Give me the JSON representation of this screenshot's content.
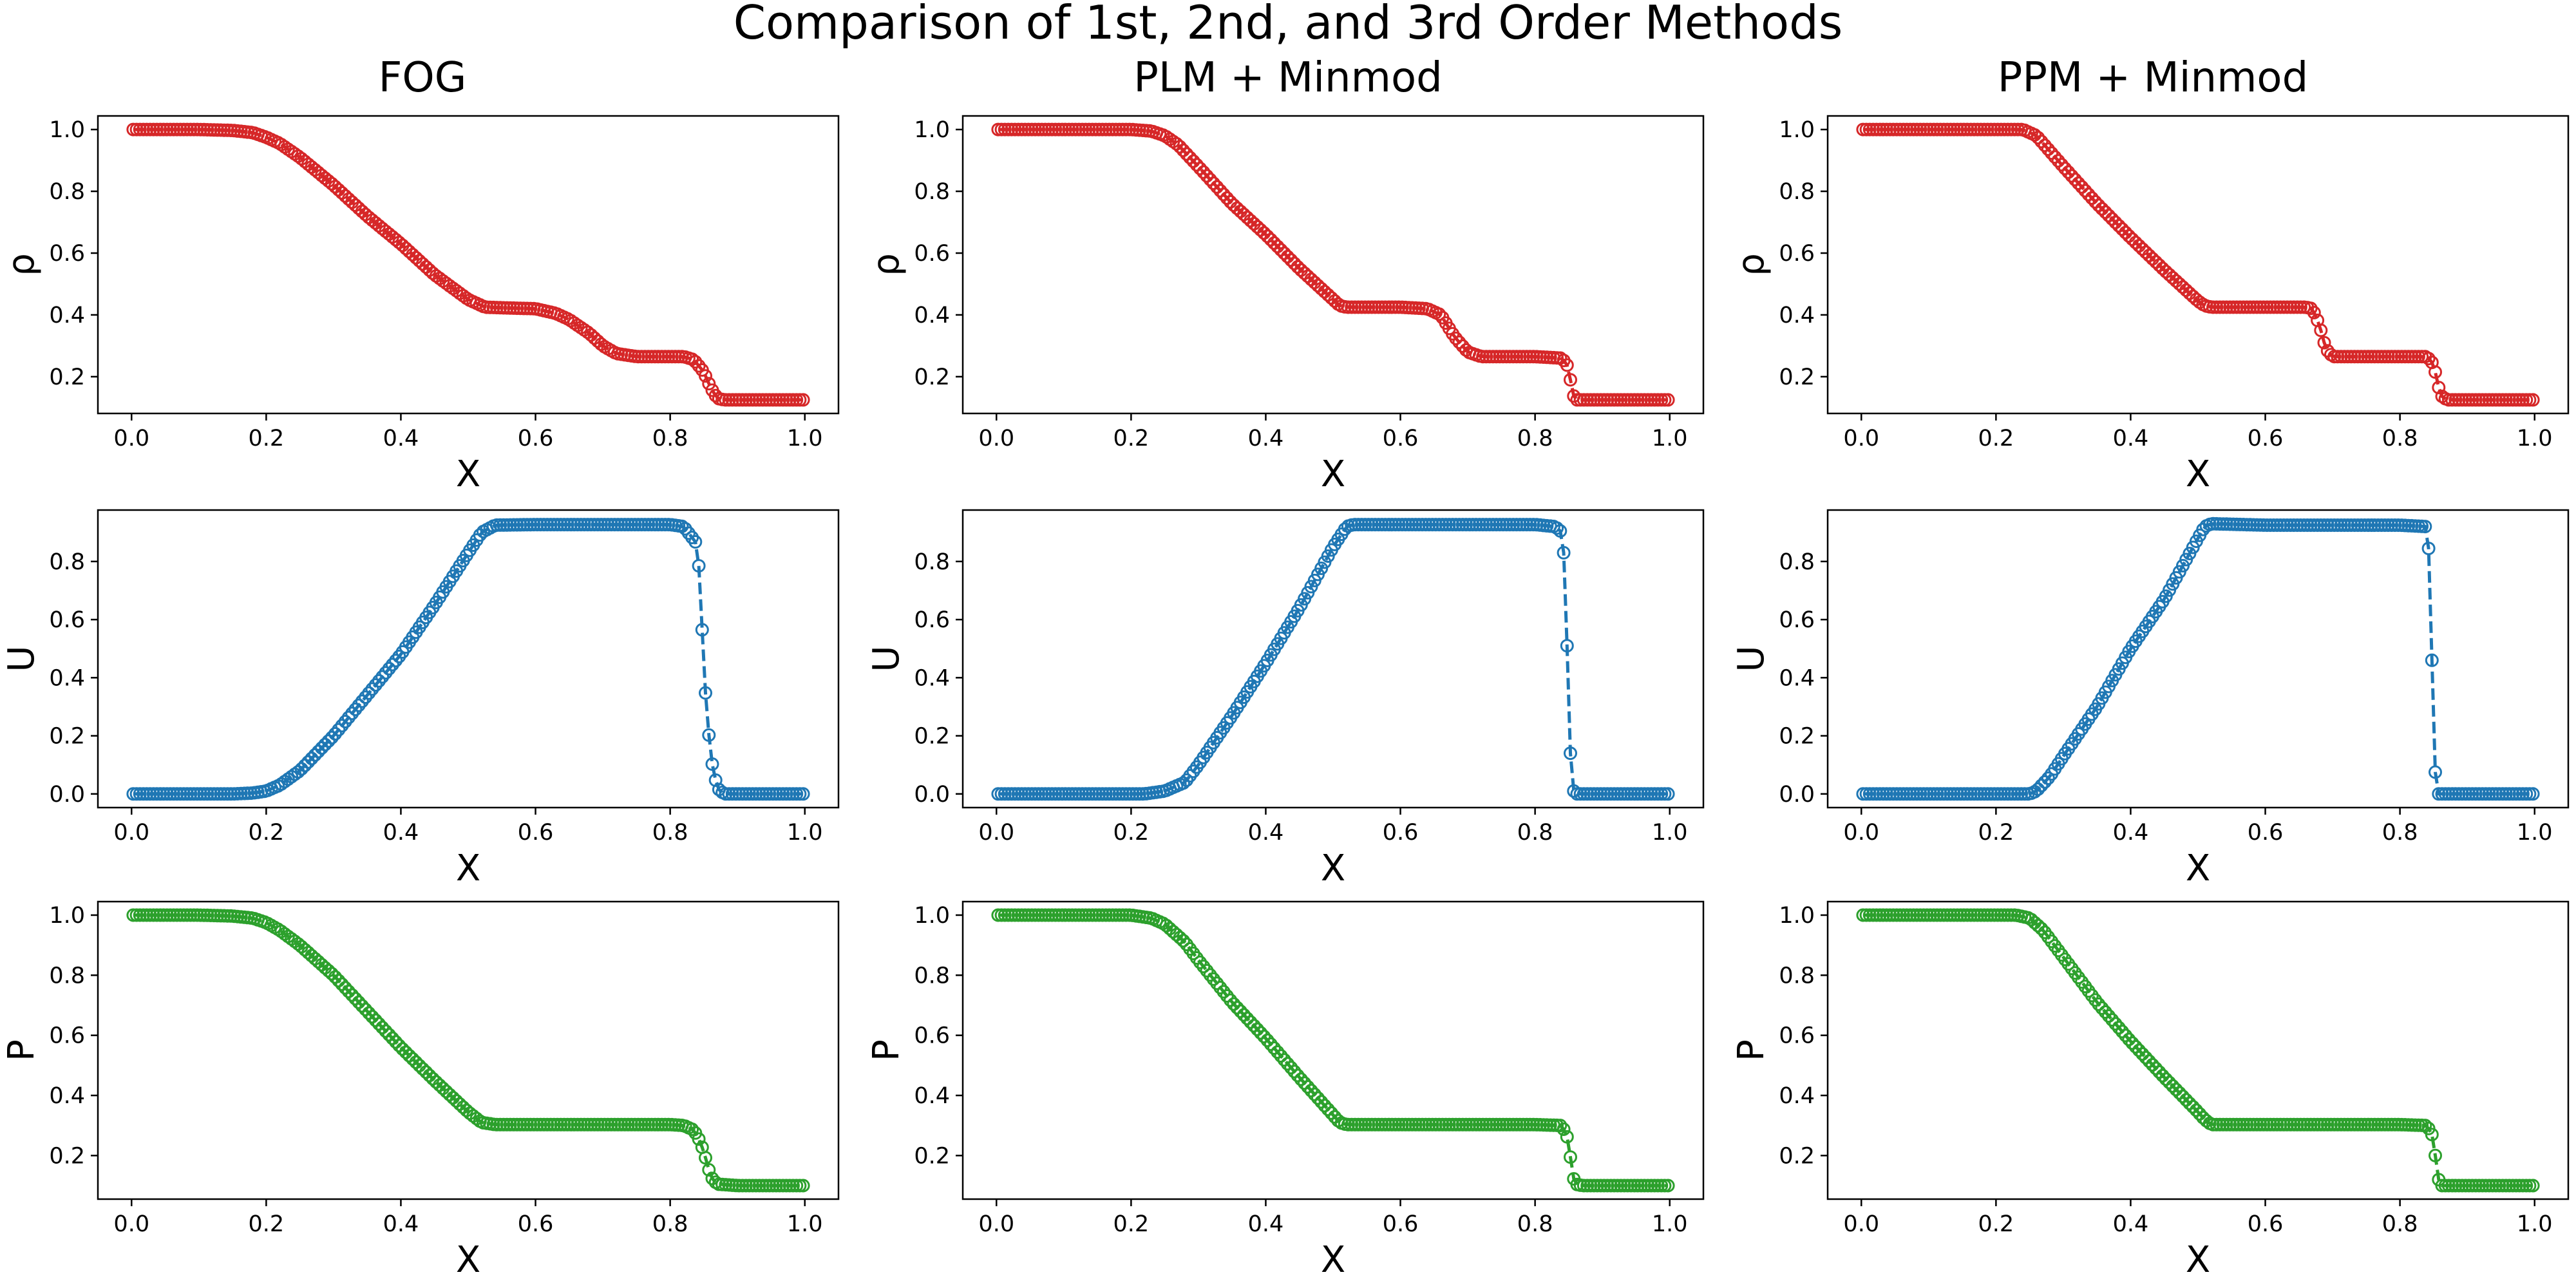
{
  "figure": {
    "title": "Comparison of 1st, 2nd, and 3rd Order Methods",
    "columns": [
      "FOG",
      "PLM + Minmod",
      "PPM + Minmod"
    ],
    "rows": [
      {
        "ylabel": "ρ",
        "color": "#d62728",
        "yticks": [
          0.2,
          0.4,
          0.6,
          0.8,
          1.0
        ],
        "ylim": [
          0.081,
          1.044
        ]
      },
      {
        "ylabel": "U",
        "color": "#1f77b4",
        "yticks": [
          0.0,
          0.2,
          0.4,
          0.6,
          0.8
        ],
        "ylim": [
          -0.047,
          0.977
        ]
      },
      {
        "ylabel": "P",
        "color": "#2ca02c",
        "yticks": [
          0.2,
          0.4,
          0.6,
          0.8,
          1.0
        ],
        "ylim": [
          0.055,
          1.045
        ]
      }
    ],
    "xlabel": "X",
    "xticks": [
      0.0,
      0.2,
      0.4,
      0.6,
      0.8,
      1.0
    ],
    "xlim": [
      -0.05,
      1.05
    ]
  },
  "chart_data": [
    {
      "type": "line",
      "column": "FOG",
      "ylabel": "ρ",
      "marker": "open-circle",
      "linestyle": "dashed",
      "n_points": 200,
      "points": [
        [
          0.0,
          1.0
        ],
        [
          0.1,
          1.0
        ],
        [
          0.15,
          0.997
        ],
        [
          0.18,
          0.99
        ],
        [
          0.2,
          0.975
        ],
        [
          0.22,
          0.955
        ],
        [
          0.25,
          0.91
        ],
        [
          0.3,
          0.82
        ],
        [
          0.35,
          0.72
        ],
        [
          0.4,
          0.63
        ],
        [
          0.45,
          0.53
        ],
        [
          0.5,
          0.45
        ],
        [
          0.525,
          0.425
        ],
        [
          0.55,
          0.423
        ],
        [
          0.6,
          0.42
        ],
        [
          0.63,
          0.405
        ],
        [
          0.65,
          0.385
        ],
        [
          0.68,
          0.34
        ],
        [
          0.7,
          0.3
        ],
        [
          0.72,
          0.275
        ],
        [
          0.75,
          0.265
        ],
        [
          0.8,
          0.265
        ],
        [
          0.82,
          0.265
        ],
        [
          0.835,
          0.255
        ],
        [
          0.85,
          0.215
        ],
        [
          0.86,
          0.165
        ],
        [
          0.87,
          0.13
        ],
        [
          0.88,
          0.125
        ],
        [
          0.9,
          0.125
        ],
        [
          1.0,
          0.125
        ]
      ]
    },
    {
      "type": "line",
      "column": "PLM + Minmod",
      "ylabel": "ρ",
      "marker": "open-circle",
      "linestyle": "dashed",
      "n_points": 200,
      "points": [
        [
          0.0,
          1.0
        ],
        [
          0.2,
          1.0
        ],
        [
          0.23,
          0.995
        ],
        [
          0.25,
          0.98
        ],
        [
          0.27,
          0.95
        ],
        [
          0.3,
          0.88
        ],
        [
          0.35,
          0.76
        ],
        [
          0.4,
          0.66
        ],
        [
          0.45,
          0.55
        ],
        [
          0.5,
          0.45
        ],
        [
          0.51,
          0.43
        ],
        [
          0.52,
          0.425
        ],
        [
          0.6,
          0.425
        ],
        [
          0.64,
          0.42
        ],
        [
          0.66,
          0.4
        ],
        [
          0.68,
          0.33
        ],
        [
          0.7,
          0.28
        ],
        [
          0.72,
          0.265
        ],
        [
          0.8,
          0.265
        ],
        [
          0.84,
          0.26
        ],
        [
          0.85,
          0.23
        ],
        [
          0.855,
          0.15
        ],
        [
          0.86,
          0.125
        ],
        [
          0.9,
          0.125
        ],
        [
          1.0,
          0.125
        ]
      ]
    },
    {
      "type": "line",
      "column": "PPM + Minmod",
      "ylabel": "ρ",
      "marker": "open-circle",
      "linestyle": "dashed",
      "n_points": 200,
      "points": [
        [
          0.0,
          1.0
        ],
        [
          0.24,
          1.0
        ],
        [
          0.26,
          0.98
        ],
        [
          0.28,
          0.93
        ],
        [
          0.3,
          0.88
        ],
        [
          0.35,
          0.76
        ],
        [
          0.4,
          0.65
        ],
        [
          0.45,
          0.545
        ],
        [
          0.5,
          0.445
        ],
        [
          0.51,
          0.43
        ],
        [
          0.52,
          0.425
        ],
        [
          0.6,
          0.425
        ],
        [
          0.66,
          0.425
        ],
        [
          0.67,
          0.42
        ],
        [
          0.68,
          0.37
        ],
        [
          0.69,
          0.29
        ],
        [
          0.7,
          0.265
        ],
        [
          0.8,
          0.265
        ],
        [
          0.84,
          0.265
        ],
        [
          0.85,
          0.24
        ],
        [
          0.86,
          0.14
        ],
        [
          0.87,
          0.125
        ],
        [
          0.9,
          0.125
        ],
        [
          1.0,
          0.125
        ]
      ]
    },
    {
      "type": "line",
      "column": "FOG",
      "ylabel": "U",
      "marker": "open-circle",
      "linestyle": "dashed",
      "n_points": 200,
      "points": [
        [
          0.0,
          0.0
        ],
        [
          0.15,
          0.0
        ],
        [
          0.18,
          0.003
        ],
        [
          0.2,
          0.01
        ],
        [
          0.22,
          0.03
        ],
        [
          0.25,
          0.08
        ],
        [
          0.3,
          0.2
        ],
        [
          0.35,
          0.34
        ],
        [
          0.4,
          0.48
        ],
        [
          0.45,
          0.65
        ],
        [
          0.5,
          0.83
        ],
        [
          0.52,
          0.9
        ],
        [
          0.54,
          0.925
        ],
        [
          0.6,
          0.927
        ],
        [
          0.7,
          0.927
        ],
        [
          0.8,
          0.927
        ],
        [
          0.82,
          0.92
        ],
        [
          0.84,
          0.86
        ],
        [
          0.845,
          0.71
        ],
        [
          0.85,
          0.42
        ],
        [
          0.86,
          0.13
        ],
        [
          0.87,
          0.02
        ],
        [
          0.88,
          0.0
        ],
        [
          1.0,
          0.0
        ]
      ]
    },
    {
      "type": "line",
      "column": "PLM + Minmod",
      "ylabel": "U",
      "marker": "open-circle",
      "linestyle": "dashed",
      "n_points": 200,
      "points": [
        [
          0.0,
          0.0
        ],
        [
          0.22,
          0.0
        ],
        [
          0.25,
          0.01
        ],
        [
          0.28,
          0.04
        ],
        [
          0.3,
          0.1
        ],
        [
          0.35,
          0.27
        ],
        [
          0.4,
          0.45
        ],
        [
          0.45,
          0.64
        ],
        [
          0.5,
          0.85
        ],
        [
          0.52,
          0.92
        ],
        [
          0.53,
          0.927
        ],
        [
          0.6,
          0.927
        ],
        [
          0.8,
          0.927
        ],
        [
          0.83,
          0.92
        ],
        [
          0.84,
          0.9
        ],
        [
          0.845,
          0.76
        ],
        [
          0.85,
          0.26
        ],
        [
          0.855,
          0.02
        ],
        [
          0.86,
          0.0
        ],
        [
          1.0,
          0.0
        ]
      ]
    },
    {
      "type": "line",
      "column": "PPM + Minmod",
      "ylabel": "U",
      "marker": "open-circle",
      "linestyle": "dashed",
      "n_points": 200,
      "points": [
        [
          0.0,
          0.0
        ],
        [
          0.25,
          0.0
        ],
        [
          0.26,
          0.01
        ],
        [
          0.28,
          0.06
        ],
        [
          0.3,
          0.13
        ],
        [
          0.35,
          0.3
        ],
        [
          0.4,
          0.5
        ],
        [
          0.45,
          0.67
        ],
        [
          0.5,
          0.88
        ],
        [
          0.51,
          0.92
        ],
        [
          0.52,
          0.93
        ],
        [
          0.6,
          0.925
        ],
        [
          0.7,
          0.925
        ],
        [
          0.8,
          0.925
        ],
        [
          0.84,
          0.92
        ],
        [
          0.845,
          0.77
        ],
        [
          0.85,
          0.15
        ],
        [
          0.855,
          0.0
        ],
        [
          1.0,
          0.0
        ]
      ]
    },
    {
      "type": "line",
      "column": "FOG",
      "ylabel": "P",
      "marker": "open-circle",
      "linestyle": "dashed",
      "n_points": 200,
      "points": [
        [
          0.0,
          1.0
        ],
        [
          0.1,
          1.0
        ],
        [
          0.15,
          0.997
        ],
        [
          0.18,
          0.99
        ],
        [
          0.2,
          0.975
        ],
        [
          0.22,
          0.95
        ],
        [
          0.25,
          0.9
        ],
        [
          0.3,
          0.8
        ],
        [
          0.35,
          0.68
        ],
        [
          0.4,
          0.56
        ],
        [
          0.45,
          0.45
        ],
        [
          0.5,
          0.345
        ],
        [
          0.52,
          0.31
        ],
        [
          0.54,
          0.303
        ],
        [
          0.6,
          0.303
        ],
        [
          0.7,
          0.303
        ],
        [
          0.8,
          0.303
        ],
        [
          0.82,
          0.3
        ],
        [
          0.835,
          0.285
        ],
        [
          0.845,
          0.245
        ],
        [
          0.855,
          0.175
        ],
        [
          0.86,
          0.13
        ],
        [
          0.87,
          0.105
        ],
        [
          0.9,
          0.1
        ],
        [
          1.0,
          0.1
        ]
      ]
    },
    {
      "type": "line",
      "column": "PLM + Minmod",
      "ylabel": "P",
      "marker": "open-circle",
      "linestyle": "dashed",
      "n_points": 200,
      "points": [
        [
          0.0,
          1.0
        ],
        [
          0.2,
          1.0
        ],
        [
          0.23,
          0.99
        ],
        [
          0.25,
          0.97
        ],
        [
          0.28,
          0.91
        ],
        [
          0.3,
          0.85
        ],
        [
          0.35,
          0.71
        ],
        [
          0.4,
          0.59
        ],
        [
          0.45,
          0.46
        ],
        [
          0.5,
          0.335
        ],
        [
          0.51,
          0.31
        ],
        [
          0.52,
          0.303
        ],
        [
          0.6,
          0.303
        ],
        [
          0.8,
          0.303
        ],
        [
          0.84,
          0.3
        ],
        [
          0.85,
          0.25
        ],
        [
          0.855,
          0.14
        ],
        [
          0.86,
          0.105
        ],
        [
          0.87,
          0.1
        ],
        [
          1.0,
          0.1
        ]
      ]
    },
    {
      "type": "line",
      "column": "PPM + Minmod",
      "ylabel": "P",
      "marker": "open-circle",
      "linestyle": "dashed",
      "n_points": 200,
      "points": [
        [
          0.0,
          1.0
        ],
        [
          0.23,
          1.0
        ],
        [
          0.25,
          0.99
        ],
        [
          0.27,
          0.95
        ],
        [
          0.3,
          0.86
        ],
        [
          0.35,
          0.71
        ],
        [
          0.4,
          0.58
        ],
        [
          0.45,
          0.46
        ],
        [
          0.5,
          0.345
        ],
        [
          0.51,
          0.32
        ],
        [
          0.52,
          0.303
        ],
        [
          0.6,
          0.303
        ],
        [
          0.8,
          0.303
        ],
        [
          0.84,
          0.3
        ],
        [
          0.85,
          0.26
        ],
        [
          0.855,
          0.14
        ],
        [
          0.86,
          0.1
        ],
        [
          1.0,
          0.1
        ]
      ]
    }
  ]
}
